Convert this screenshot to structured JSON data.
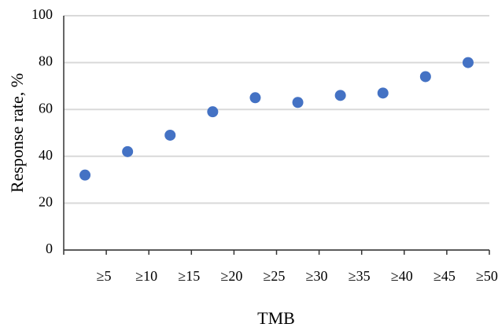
{
  "chart_data": {
    "type": "scatter",
    "categories": [
      "≥5",
      "≥10",
      "≥15",
      "≥20",
      "≥25",
      "≥30",
      "≥35",
      "≥40",
      "≥45",
      "≥50"
    ],
    "values": [
      32,
      42,
      49,
      59,
      65,
      63,
      66,
      67,
      74,
      80
    ],
    "color": "#4472c4",
    "x_label": "TMB",
    "y_label": "Response rate, %",
    "ylim": [
      0,
      100
    ],
    "yticks": [
      0,
      20,
      40,
      60,
      80,
      100
    ],
    "grid": true
  }
}
